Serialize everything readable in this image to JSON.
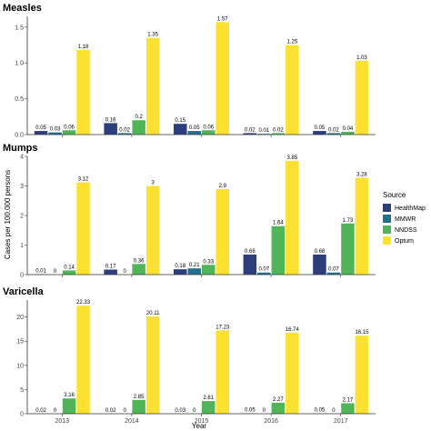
{
  "chart_data": {
    "type": "bar",
    "xlabel": "Year",
    "ylabel": "Cases per 100,000 persons",
    "categories": [
      "2013",
      "2014",
      "2015",
      "2016",
      "2017"
    ],
    "legend": {
      "title": "Source",
      "position": "right",
      "items": [
        {
          "name": "HealthMap",
          "color": "#2c3e7b"
        },
        {
          "name": "MMWR",
          "color": "#21708c"
        },
        {
          "name": "NNDSS",
          "color": "#4fb558"
        },
        {
          "name": "Optum",
          "color": "#fde131"
        }
      ]
    },
    "panels": [
      {
        "title": "Measles",
        "ylim": [
          0,
          1.65
        ],
        "yticks": [
          0,
          0.5,
          1,
          1.5
        ],
        "ytick_labels": [
          "0.0",
          "0.5",
          "1.0",
          "1.5"
        ],
        "series": [
          {
            "name": "HealthMap",
            "values": [
              0.05,
              0.16,
              0.15,
              0.02,
              0.05
            ],
            "labels": [
              "0.05",
              "0.16",
              "0.15",
              "0.02",
              "0.05"
            ]
          },
          {
            "name": "MMWR",
            "values": [
              0.03,
              0.02,
              0.05,
              0.01,
              0.02
            ],
            "labels": [
              "0.03",
              "0.02",
              "0.05",
              "0.01",
              "0.02"
            ]
          },
          {
            "name": "NNDSS",
            "values": [
              0.06,
              0.2,
              0.06,
              0.02,
              0.04
            ],
            "labels": [
              "0.06",
              "0.2",
              "0.06",
              "0.02",
              "0.04"
            ]
          },
          {
            "name": "Optum",
            "values": [
              1.18,
              1.35,
              1.57,
              1.25,
              1.03
            ],
            "labels": [
              "1.18",
              "1.35",
              "1.57",
              "1.25",
              "1.03"
            ]
          }
        ]
      },
      {
        "title": "Mumps",
        "ylim": [
          0,
          4.0
        ],
        "yticks": [
          0,
          1,
          2,
          3,
          4
        ],
        "ytick_labels": [
          "0",
          "1",
          "2",
          "3",
          "4"
        ],
        "series": [
          {
            "name": "HealthMap",
            "values": [
              0.01,
              0.17,
              0.18,
              0.68,
              0.68
            ],
            "labels": [
              "0.01",
              "0.17",
              "0.18",
              "0.68",
              "0.68"
            ]
          },
          {
            "name": "MMWR",
            "values": [
              0,
              0,
              0.21,
              0.07,
              0.07
            ],
            "labels": [
              "0",
              "0",
              "0.21",
              "0.07",
              "0.07"
            ]
          },
          {
            "name": "NNDSS",
            "values": [
              0.14,
              0.36,
              0.33,
              1.64,
              1.73
            ],
            "labels": [
              "0.14",
              "0.36",
              "0.33",
              "1.64",
              "1.73"
            ]
          },
          {
            "name": "Optum",
            "values": [
              3.12,
              3,
              2.9,
              3.85,
              3.28
            ],
            "labels": [
              "3.12",
              "3",
              "2.9",
              "3.85",
              "3.28"
            ]
          }
        ]
      },
      {
        "title": "Varicella",
        "ylim": [
          0,
          23.5
        ],
        "yticks": [
          0,
          5,
          10,
          15,
          20
        ],
        "ytick_labels": [
          "0",
          "5",
          "10",
          "15",
          "20"
        ],
        "series": [
          {
            "name": "HealthMap",
            "values": [
              0.02,
              0.02,
              0.03,
              0.05,
              0.05
            ],
            "labels": [
              "0.02",
              "0.02",
              "0.03",
              "0.05",
              "0.05"
            ]
          },
          {
            "name": "MMWR",
            "values": [
              0,
              0,
              0,
              0,
              0
            ],
            "labels": [
              "0",
              "0",
              "0",
              "0",
              "0"
            ]
          },
          {
            "name": "NNDSS",
            "values": [
              3.16,
              2.85,
              2.61,
              2.27,
              2.17
            ],
            "labels": [
              "3.16",
              "2.85",
              "2.61",
              "2.27",
              "2.17"
            ]
          },
          {
            "name": "Optum",
            "values": [
              22.33,
              20.11,
              17.23,
              16.74,
              16.15
            ],
            "labels": [
              "22.33",
              "20.11",
              "17.23",
              "16.74",
              "16.15"
            ]
          }
        ]
      }
    ],
    "grid": false
  }
}
